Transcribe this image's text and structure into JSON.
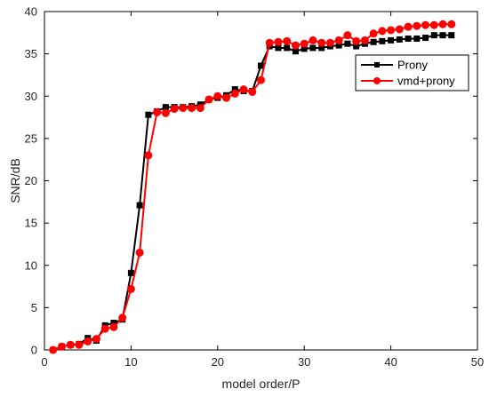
{
  "chart_data": {
    "type": "line",
    "title": "",
    "xlabel": "model order/P",
    "ylabel": "SNR/dB",
    "xlim": [
      0,
      50
    ],
    "ylim": [
      0,
      40
    ],
    "xticks": [
      0,
      10,
      20,
      30,
      40,
      50
    ],
    "yticks": [
      0,
      5,
      10,
      15,
      20,
      25,
      30,
      35,
      40
    ],
    "grid": false,
    "legend_position": "top-right",
    "series": [
      {
        "name": "Prony",
        "color": "#000000",
        "marker": "square",
        "x": [
          1,
          2,
          3,
          4,
          5,
          6,
          7,
          8,
          9,
          10,
          11,
          12,
          13,
          14,
          15,
          16,
          17,
          18,
          19,
          20,
          21,
          22,
          23,
          24,
          25,
          26,
          27,
          28,
          29,
          30,
          31,
          32,
          33,
          34,
          35,
          36,
          37,
          38,
          39,
          40,
          41,
          42,
          43,
          44,
          45,
          46,
          47
        ],
        "values": [
          0.0,
          0.4,
          0.6,
          0.7,
          1.4,
          1.1,
          2.9,
          3.2,
          3.6,
          9.1,
          17.1,
          27.8,
          28.2,
          28.7,
          28.7,
          28.7,
          28.8,
          29.0,
          29.6,
          29.8,
          30.1,
          30.8,
          30.6,
          30.6,
          33.6,
          35.9,
          35.7,
          35.7,
          35.3,
          35.6,
          35.7,
          35.7,
          35.9,
          36.0,
          36.2,
          35.9,
          36.2,
          36.4,
          36.5,
          36.6,
          36.7,
          36.8,
          36.8,
          36.9,
          37.2,
          37.2,
          37.2
        ]
      },
      {
        "name": "vmd+prony",
        "color": "#ff0000",
        "marker": "circle",
        "x": [
          1,
          2,
          3,
          4,
          5,
          6,
          7,
          8,
          9,
          10,
          11,
          12,
          13,
          14,
          15,
          16,
          17,
          18,
          19,
          20,
          21,
          22,
          23,
          24,
          25,
          26,
          27,
          28,
          29,
          30,
          31,
          32,
          33,
          34,
          35,
          36,
          37,
          38,
          39,
          40,
          41,
          42,
          43,
          44,
          45,
          46,
          47
        ],
        "values": [
          0.0,
          0.4,
          0.6,
          0.6,
          1.0,
          1.3,
          2.5,
          2.7,
          3.8,
          7.2,
          11.5,
          23.0,
          28.1,
          28.0,
          28.5,
          28.6,
          28.6,
          28.6,
          29.6,
          30.0,
          29.8,
          30.3,
          30.8,
          30.5,
          31.9,
          36.3,
          36.4,
          36.5,
          36.0,
          36.2,
          36.6,
          36.3,
          36.3,
          36.6,
          37.2,
          36.5,
          36.6,
          37.4,
          37.7,
          37.8,
          37.9,
          38.2,
          38.3,
          38.4,
          38.4,
          38.5,
          38.5
        ]
      }
    ]
  }
}
